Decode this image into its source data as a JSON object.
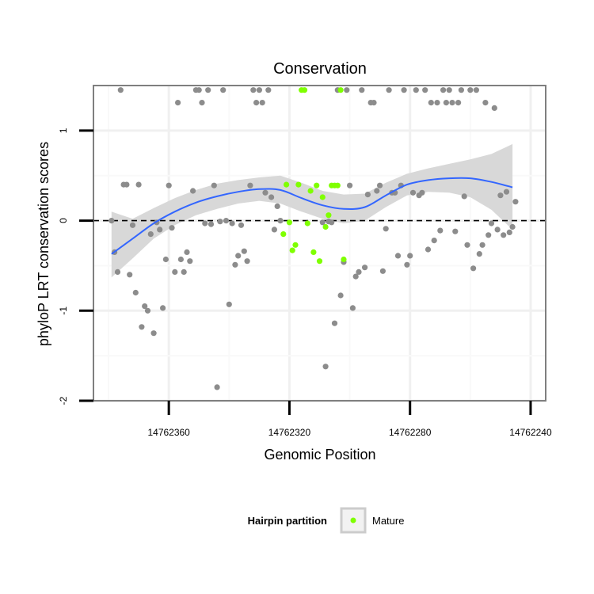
{
  "colors": {
    "panel_border": "#7f7f7f",
    "grid_major": "#f0f0f0",
    "grid_minor": "#f9f9f9",
    "point_default": "#8c8c8c",
    "point_mature": "#7fff00",
    "smooth_line": "#3366ff",
    "ribbon": "#d6d6d6",
    "zero_line": "#000000"
  },
  "chart_data": {
    "type": "scatter",
    "title": "Conservation",
    "xlabel": "Genomic Position",
    "ylabel": "phyloP LRT conservation scores",
    "x_reversed": true,
    "xlim": [
      14762385,
      14762235
    ],
    "ylim": [
      -2,
      1.5
    ],
    "x_ticks": [
      14762360,
      14762320,
      14762280,
      14762240
    ],
    "x_tick_labels": [
      "14762360",
      "14762320",
      "14762280",
      "14762240"
    ],
    "y_ticks": [
      -2,
      -1,
      0,
      1
    ],
    "y_tick_labels": [
      "-2",
      "-1",
      "0",
      "1"
    ],
    "grid": true,
    "reference_line": {
      "y": 0,
      "style": "dashed"
    },
    "legend": {
      "title": "Hairpin partition",
      "position": "bottom",
      "entries": [
        {
          "label": "Mature",
          "color": "#7fff00"
        }
      ]
    },
    "series": [
      {
        "color": "#8c8c8c",
        "points": [
          [
            14762379,
            0.0
          ],
          [
            14762378,
            -0.35
          ],
          [
            14762377,
            -0.57
          ],
          [
            14762376,
            1.45
          ],
          [
            14762375,
            0.4
          ],
          [
            14762374,
            0.4
          ],
          [
            14762373,
            -0.6
          ],
          [
            14762372,
            -0.05
          ],
          [
            14762371,
            -0.8
          ],
          [
            14762370,
            0.4
          ],
          [
            14762369,
            -1.18
          ],
          [
            14762368,
            -0.95
          ],
          [
            14762367,
            -1.0
          ],
          [
            14762366,
            -0.15
          ],
          [
            14762365,
            -1.25
          ],
          [
            14762364,
            -0.02
          ],
          [
            14762363,
            -0.1
          ],
          [
            14762362,
            -0.97
          ],
          [
            14762361,
            -0.43
          ],
          [
            14762360,
            0.39
          ],
          [
            14762359,
            -0.08
          ],
          [
            14762358,
            -0.57
          ],
          [
            14762357,
            1.31
          ],
          [
            14762356,
            -0.43
          ],
          [
            14762355,
            -0.57
          ],
          [
            14762354,
            -0.35
          ],
          [
            14762353,
            -0.45
          ],
          [
            14762352,
            0.33
          ],
          [
            14762351,
            1.45
          ],
          [
            14762350,
            1.45
          ],
          [
            14762349,
            1.31
          ],
          [
            14762348,
            -0.03
          ],
          [
            14762347,
            1.45
          ],
          [
            14762346,
            -0.04
          ],
          [
            14762345,
            0.39
          ],
          [
            14762344,
            -1.85
          ],
          [
            14762343,
            -0.01
          ],
          [
            14762342,
            1.45
          ],
          [
            14762341,
            0.0
          ],
          [
            14762340,
            -0.93
          ],
          [
            14762339,
            -0.03
          ],
          [
            14762338,
            -0.49
          ],
          [
            14762337,
            -0.39
          ],
          [
            14762336,
            -0.05
          ],
          [
            14762335,
            -0.34
          ],
          [
            14762334,
            -0.45
          ],
          [
            14762333,
            0.39
          ],
          [
            14762332,
            1.45
          ],
          [
            14762331,
            1.31
          ],
          [
            14762330,
            1.45
          ],
          [
            14762329,
            1.31
          ],
          [
            14762328,
            0.31
          ],
          [
            14762327,
            1.45
          ],
          [
            14762326,
            0.26
          ],
          [
            14762325,
            -0.1
          ],
          [
            14762324,
            0.16
          ],
          [
            14762323,
            0.0
          ],
          [
            14762309,
            -0.02
          ],
          [
            14762308,
            -1.62
          ],
          [
            14762307,
            -0.01
          ],
          [
            14762306,
            -0.02
          ],
          [
            14762305,
            -1.14
          ],
          [
            14762304,
            1.45
          ],
          [
            14762303,
            -0.83
          ],
          [
            14762302,
            -0.46
          ],
          [
            14762301,
            1.45
          ],
          [
            14762300,
            0.39
          ],
          [
            14762299,
            -0.97
          ],
          [
            14762298,
            -0.62
          ],
          [
            14762297,
            -0.57
          ],
          [
            14762296,
            1.45
          ],
          [
            14762295,
            -0.52
          ],
          [
            14762294,
            0.29
          ],
          [
            14762293,
            1.31
          ],
          [
            14762292,
            1.31
          ],
          [
            14762291,
            0.33
          ],
          [
            14762290,
            0.39
          ],
          [
            14762289,
            -0.56
          ],
          [
            14762288,
            -0.09
          ],
          [
            14762287,
            1.45
          ],
          [
            14762286,
            0.31
          ],
          [
            14762285,
            0.31
          ],
          [
            14762284,
            -0.39
          ],
          [
            14762283,
            0.39
          ],
          [
            14762282,
            1.45
          ],
          [
            14762281,
            -0.49
          ],
          [
            14762280,
            -0.39
          ],
          [
            14762279,
            0.31
          ],
          [
            14762278,
            1.45
          ],
          [
            14762277,
            0.28
          ],
          [
            14762276,
            0.31
          ],
          [
            14762275,
            1.45
          ],
          [
            14762274,
            -0.32
          ],
          [
            14762273,
            1.31
          ],
          [
            14762272,
            -0.22
          ],
          [
            14762271,
            1.31
          ],
          [
            14762270,
            -0.11
          ],
          [
            14762269,
            1.45
          ],
          [
            14762268,
            1.31
          ],
          [
            14762267,
            1.45
          ],
          [
            14762266,
            1.31
          ],
          [
            14762265,
            -0.12
          ],
          [
            14762264,
            1.31
          ],
          [
            14762263,
            1.45
          ],
          [
            14762262,
            0.27
          ],
          [
            14762261,
            -0.27
          ],
          [
            14762260,
            1.45
          ],
          [
            14762259,
            -0.53
          ],
          [
            14762258,
            1.45
          ],
          [
            14762257,
            -0.37
          ],
          [
            14762256,
            -0.27
          ],
          [
            14762255,
            1.31
          ],
          [
            14762254,
            -0.16
          ],
          [
            14762253,
            -0.03
          ],
          [
            14762252,
            1.25
          ],
          [
            14762251,
            -0.1
          ],
          [
            14762250,
            0.28
          ],
          [
            14762249,
            -0.16
          ],
          [
            14762248,
            0.32
          ],
          [
            14762247,
            -0.13
          ],
          [
            14762246,
            -0.07
          ],
          [
            14762245,
            0.21
          ]
        ]
      },
      {
        "name": "Mature",
        "color": "#7fff00",
        "points": [
          [
            14762322,
            -0.15
          ],
          [
            14762321,
            0.4
          ],
          [
            14762320,
            -0.02
          ],
          [
            14762319,
            -0.33
          ],
          [
            14762318,
            -0.27
          ],
          [
            14762317,
            0.4
          ],
          [
            14762316,
            1.45
          ],
          [
            14762315,
            1.45
          ],
          [
            14762314,
            -0.03
          ],
          [
            14762313,
            0.33
          ],
          [
            14762312,
            -0.35
          ],
          [
            14762311,
            0.39
          ],
          [
            14762310,
            -0.45
          ],
          [
            14762309,
            0.26
          ],
          [
            14762308,
            -0.07
          ],
          [
            14762307,
            0.06
          ],
          [
            14762306,
            0.39
          ],
          [
            14762305,
            0.39
          ],
          [
            14762304,
            0.39
          ],
          [
            14762303,
            1.45
          ],
          [
            14762302,
            -0.43
          ]
        ]
      }
    ],
    "smooth": {
      "x": [
        14762379,
        14762372,
        14762365,
        14762358,
        14762351,
        14762344,
        14762337,
        14762330,
        14762323,
        14762316,
        14762309,
        14762302,
        14762295,
        14762288,
        14762281,
        14762274,
        14762267,
        14762260,
        14762253,
        14762246
      ],
      "y": [
        -0.37,
        -0.2,
        -0.03,
        0.1,
        0.2,
        0.27,
        0.32,
        0.35,
        0.34,
        0.25,
        0.17,
        0.13,
        0.15,
        0.28,
        0.4,
        0.45,
        0.47,
        0.47,
        0.43,
        0.37
      ],
      "lower": [
        -0.63,
        -0.42,
        -0.2,
        -0.05,
        0.06,
        0.13,
        0.19,
        0.22,
        0.19,
        0.1,
        0.02,
        -0.03,
        0.0,
        0.15,
        0.28,
        0.32,
        0.31,
        0.26,
        0.12,
        -0.1
      ],
      "upper": [
        0.1,
        0.02,
        0.14,
        0.25,
        0.34,
        0.41,
        0.45,
        0.48,
        0.5,
        0.42,
        0.33,
        0.29,
        0.3,
        0.42,
        0.52,
        0.58,
        0.63,
        0.68,
        0.74,
        0.85
      ]
    }
  }
}
